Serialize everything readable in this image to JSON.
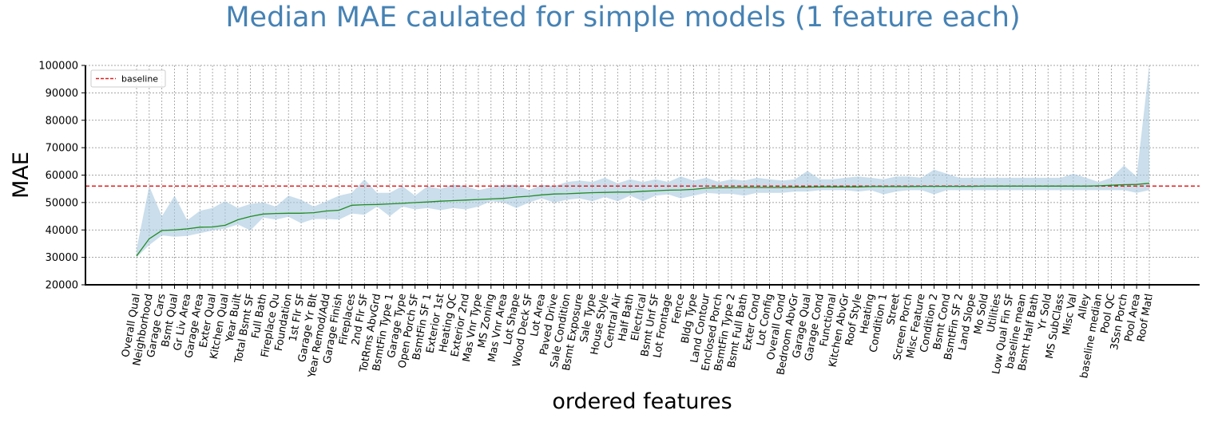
{
  "chart_data": {
    "type": "line",
    "title": "Median MAE caulated for simple models (1 feature each)",
    "xlabel": "ordered features",
    "ylabel": "MAE",
    "ylim": [
      20000,
      100000
    ],
    "yticks": [
      20000,
      30000,
      40000,
      50000,
      60000,
      70000,
      80000,
      90000,
      100000
    ],
    "grid": true,
    "legend_position": "top-left",
    "categories": [
      "Overall Qual",
      "Neighborhood",
      "Garage Cars",
      "Bsmt Qual",
      "Gr Liv Area",
      "Garage Area",
      "Exter Qual",
      "Kitchen Qual",
      "Year Built",
      "Total Bsmt SF",
      "Full Bath",
      "Fireplace Qu",
      "Foundation",
      "1st Flr SF",
      "Garage Yr Blt",
      "Year Remod/Add",
      "Garage Finish",
      "Fireplaces",
      "2nd Flr SF",
      "TotRms AbvGrd",
      "BsmtFin Type 1",
      "Garage Type",
      "Open Porch SF",
      "BsmtFin SF 1",
      "Exterior 1st",
      "Heating QC",
      "Exterior 2nd",
      "Mas Vnr Type",
      "MS Zoning",
      "Mas Vnr Area",
      "Lot Shape",
      "Wood Deck SF",
      "Lot Area",
      "Paved Drive",
      "Sale Condition",
      "Bsmt Exposure",
      "Sale Type",
      "House Style",
      "Central Air",
      "Half Bath",
      "Electrical",
      "Bsmt Unf SF",
      "Lot Frontage",
      "Fence",
      "Bldg Type",
      "Land Contour",
      "Enclosed Porch",
      "BsmtFin Type 2",
      "Bsmt Full Bath",
      "Exter Cond",
      "Lot Config",
      "Overall Cond",
      "Bedroom AbvGr",
      "Garage Qual",
      "Garage Cond",
      "Functional",
      "Kitchen AbvGr",
      "Roof Style",
      "Heating",
      "Condition 1",
      "Street",
      "Screen Porch",
      "Misc Feature",
      "Condition 2",
      "Bsmt Cond",
      "BsmtFin SF 2",
      "Land Slope",
      "Mo Sold",
      "Utilities",
      "Low Qual Fin SF",
      "baseline mean",
      "Bsmt Half Bath",
      "Yr Sold",
      "MS SubClass",
      "Misc Val",
      "Alley",
      "baseline median",
      "Pool QC",
      "3Ssn Porch",
      "Pool Area",
      "Roof Matl"
    ],
    "series": [
      {
        "type": "line",
        "color": "#228b22",
        "values": [
          30500,
          36800,
          39800,
          40000,
          40400,
          41000,
          41100,
          41700,
          43700,
          44900,
          45800,
          46000,
          46100,
          46100,
          46300,
          46900,
          47200,
          49000,
          49200,
          49300,
          49500,
          49700,
          50000,
          50200,
          50500,
          50700,
          50900,
          51100,
          51300,
          51500,
          52000,
          52300,
          52800,
          53100,
          53200,
          53400,
          53600,
          53700,
          53800,
          53800,
          54100,
          54300,
          54500,
          54600,
          54800,
          55300,
          55400,
          55400,
          55500,
          55500,
          55500,
          55500,
          55600,
          55600,
          55700,
          55700,
          55700,
          55700,
          55800,
          55800,
          55800,
          55800,
          55900,
          55900,
          55900,
          55900,
          55900,
          56000,
          56000,
          56000,
          56000,
          56000,
          56000,
          56000,
          56000,
          56000,
          56100,
          56300,
          56500,
          56600,
          57000
        ]
      },
      {
        "type": "band",
        "color": "#a6c8e0",
        "lower": [
          30000,
          34500,
          38000,
          37500,
          37800,
          38800,
          39800,
          40500,
          42000,
          39800,
          44500,
          43800,
          44800,
          42500,
          44000,
          44000,
          43800,
          46000,
          45500,
          48500,
          45000,
          48500,
          47500,
          48000,
          47200,
          48000,
          47500,
          48500,
          50500,
          50000,
          48000,
          50000,
          51500,
          50000,
          51000,
          51500,
          50500,
          52000,
          50500,
          52500,
          50500,
          52500,
          53000,
          51500,
          52500,
          53500,
          53200,
          53200,
          52500,
          53500,
          53500,
          53500,
          54000,
          54000,
          54500,
          54500,
          54500,
          54000,
          54500,
          53000,
          54000,
          54500,
          54500,
          53000,
          54500,
          54500,
          54500,
          54500,
          54500,
          54500,
          54500,
          54500,
          54500,
          54500,
          54500,
          54500,
          54500,
          54500,
          54500,
          53500,
          54500
        ],
        "upper": [
          33000,
          56000,
          45000,
          52500,
          43500,
          47000,
          48000,
          50500,
          48000,
          49500,
          50000,
          48500,
          52500,
          51000,
          48500,
          50500,
          52500,
          53500,
          58500,
          53500,
          53500,
          56000,
          52500,
          56000,
          55000,
          56500,
          56000,
          54500,
          55500,
          56500,
          56500,
          54500,
          56500,
          56000,
          57500,
          58000,
          57500,
          59000,
          57000,
          58500,
          57500,
          58500,
          57500,
          59500,
          58000,
          59000,
          57500,
          58500,
          58000,
          59000,
          58500,
          58000,
          58500,
          61500,
          58500,
          58500,
          59000,
          59500,
          59000,
          58500,
          59500,
          59500,
          59000,
          62000,
          60500,
          59000,
          59000,
          59000,
          59000,
          59000,
          59000,
          59000,
          59000,
          59000,
          60500,
          59000,
          57500,
          59000,
          63500,
          59500,
          100000
        ]
      },
      {
        "type": "hline",
        "name": "baseline",
        "color": "#e02020",
        "linestyle": "dashed",
        "y": 56000
      }
    ]
  }
}
